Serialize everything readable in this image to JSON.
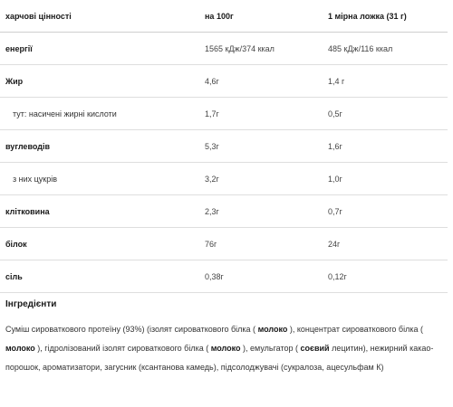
{
  "table": {
    "headers": [
      "харчові цінності",
      "на 100г",
      "1 мірна ложка (31 г)"
    ],
    "rows": [
      {
        "name": "енергії",
        "per100": "1565 кДж/374 ккал",
        "perScoop": "485 кДж/116 ккал",
        "bold": true
      },
      {
        "name": "Жир",
        "per100": "4,6г",
        "perScoop": "1,4 г",
        "bold": true
      },
      {
        "name": "тут: насичені жирні кислоти",
        "per100": "1,7г",
        "perScoop": "0,5г",
        "bold": false
      },
      {
        "name": "вуглеводів",
        "per100": "5,3г",
        "perScoop": "1,6г",
        "bold": true
      },
      {
        "name": "з них цукрів",
        "per100": "3,2г",
        "perScoop": "1,0г",
        "bold": false
      },
      {
        "name": "клітковина",
        "per100": "2,3г",
        "perScoop": "0,7г",
        "bold": true
      },
      {
        "name": "білок",
        "per100": "76г",
        "perScoop": "24г",
        "bold": true
      },
      {
        "name": "сіль",
        "per100": "0,38г",
        "perScoop": "0,12г",
        "bold": true
      }
    ]
  },
  "ingredients": {
    "title": "Інгредієнти",
    "parts": [
      {
        "t": "Суміш сироваткового протеїну (93%) (ізолят сироваткового білка ( ",
        "b": false
      },
      {
        "t": "молоко",
        "b": true
      },
      {
        "t": " ), концентрат сироваткового білка ( ",
        "b": false
      },
      {
        "t": "молоко",
        "b": true
      },
      {
        "t": " ), гідролізований ізолят сироваткового білка ( ",
        "b": false
      },
      {
        "t": "молоко",
        "b": true
      },
      {
        "t": " ), емульгатор ( ",
        "b": false
      },
      {
        "t": "соєвий",
        "b": true
      },
      {
        "t": " лецитин), нежирний какао-порошок, ароматизатори, загусник (ксантанова камедь), підсолоджувачі (сукралоза, ацесульфам К)",
        "b": false
      }
    ]
  }
}
